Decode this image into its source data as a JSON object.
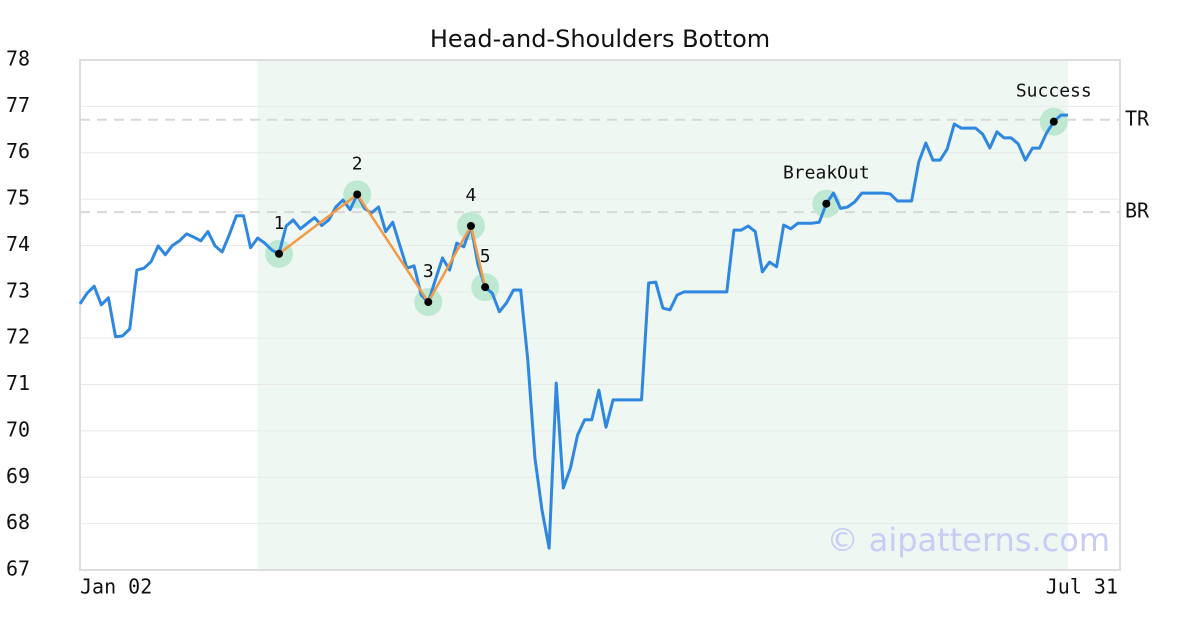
{
  "chart_data": {
    "type": "line",
    "title": "Head-and-Shoulders Bottom",
    "categories": [
      "Jan 02",
      null,
      null,
      null,
      null,
      null,
      null,
      null,
      null,
      null,
      null,
      null,
      null,
      null,
      null,
      null,
      null,
      null,
      null,
      null,
      null,
      null,
      null,
      null,
      null,
      null,
      null,
      null,
      null,
      null,
      null,
      null,
      null,
      null,
      null,
      null,
      null,
      null,
      null,
      null,
      null,
      null,
      null,
      null,
      null,
      null,
      null,
      null,
      null,
      null,
      null,
      null,
      null,
      null,
      null,
      null,
      null,
      null,
      null,
      null,
      null,
      null,
      null,
      null,
      null,
      null,
      null,
      null,
      null,
      null,
      null,
      null,
      null,
      null,
      null,
      null,
      null,
      null,
      null,
      null,
      null,
      null,
      null,
      null,
      null,
      null,
      null,
      null,
      null,
      null,
      null,
      null,
      null,
      null,
      null,
      null,
      null,
      null,
      null,
      null,
      null,
      null,
      null,
      null,
      null,
      null,
      null,
      null,
      null,
      null,
      null,
      null,
      null,
      null,
      null,
      null,
      null,
      null,
      null,
      null,
      null,
      null,
      null,
      null,
      null,
      null,
      null,
      null,
      null,
      null,
      null,
      null,
      null,
      null,
      null,
      null,
      null,
      null,
      null,
      "Jul 31"
    ],
    "series": [
      {
        "color": "#2f87e0",
        "values": [
          72.74,
          72.97,
          73.12,
          72.72,
          72.87,
          72.03,
          72.05,
          72.2,
          73.47,
          73.51,
          73.65,
          73.99,
          73.8,
          74.0,
          74.1,
          74.25,
          74.18,
          74.1,
          74.3,
          73.99,
          73.86,
          74.23,
          74.64,
          74.64,
          73.95,
          74.16,
          74.05,
          73.9,
          73.82,
          74.42,
          74.55,
          74.36,
          74.48,
          74.6,
          74.43,
          74.55,
          74.83,
          74.98,
          74.77,
          75.1,
          74.8,
          74.7,
          74.83,
          74.3,
          74.5,
          74.0,
          73.51,
          73.56,
          72.93,
          72.78,
          73.26,
          73.73,
          73.47,
          74.05,
          73.97,
          74.42,
          73.58,
          73.1,
          72.97,
          72.57,
          72.76,
          73.04,
          73.04,
          71.53,
          69.42,
          68.29,
          67.47,
          71.03,
          68.77,
          69.2,
          69.91,
          70.24,
          70.24,
          70.88,
          70.08,
          70.67,
          70.67,
          70.67,
          70.67,
          70.67,
          73.19,
          73.21,
          72.65,
          72.61,
          72.93,
          73.0,
          73.0,
          73.0,
          73.0,
          73.0,
          73.0,
          73.0,
          74.33,
          74.33,
          74.42,
          74.3,
          73.43,
          73.64,
          73.54,
          74.44,
          74.36,
          74.48,
          74.48,
          74.48,
          74.5,
          74.9,
          75.13,
          74.8,
          74.83,
          74.94,
          75.13,
          75.13,
          75.13,
          75.13,
          75.11,
          74.96,
          74.96,
          74.96,
          75.8,
          76.21,
          75.84,
          75.84,
          76.08,
          76.62,
          76.53,
          76.53,
          76.53,
          76.4,
          76.1,
          76.45,
          76.32,
          76.32,
          76.19,
          75.84,
          76.1,
          76.1,
          76.43,
          76.67,
          76.81,
          76.81
        ]
      }
    ],
    "pattern_color": "#f39a45",
    "points": [
      {
        "label": "1",
        "at": 28
      },
      {
        "label": "2",
        "at": 39
      },
      {
        "label": "3",
        "at": 49
      },
      {
        "label": "4",
        "at": 55
      },
      {
        "label": "5",
        "at": 57
      },
      {
        "label": "BreakOut",
        "at": 105
      },
      {
        "label": "Success",
        "at": 137
      }
    ],
    "pattern": [
      0,
      1,
      2,
      3,
      4
    ],
    "highlight": [
      25,
      139
    ],
    "levels": [
      {
        "label": "TR",
        "value": 76.71
      },
      {
        "label": "BR",
        "value": 74.72
      }
    ],
    "ylim": [
      67,
      78
    ],
    "yticks": [
      67,
      68,
      69,
      70,
      71,
      72,
      73,
      74,
      75,
      76,
      77,
      78
    ],
    "grid": true,
    "watermark": "© aipatterns.com"
  }
}
